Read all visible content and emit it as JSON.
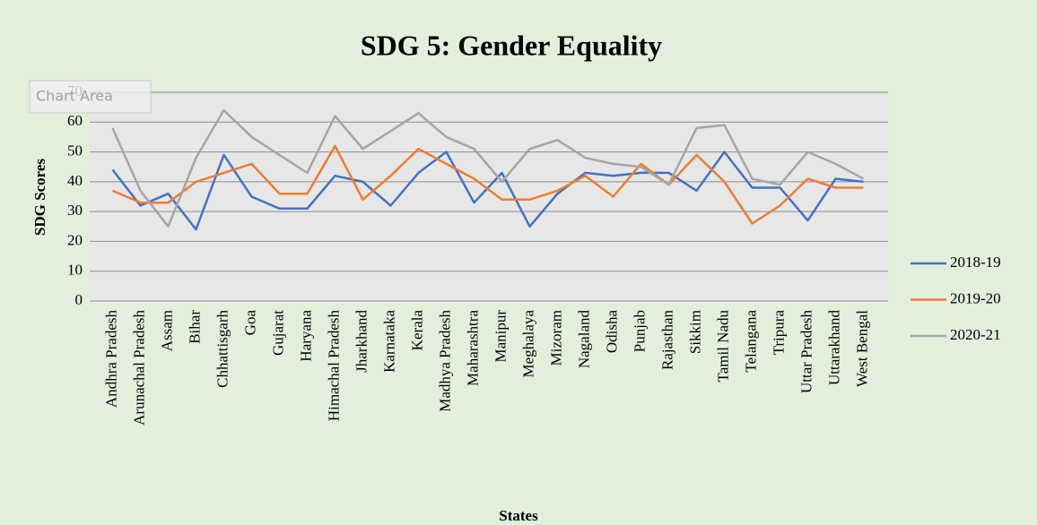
{
  "chart_data": {
    "type": "line",
    "title": "SDG 5: Gender Equality",
    "x_label": "States",
    "y_label": "SDG Scores",
    "categories": [
      "Andhra Pradesh",
      "Arunachal Pradesh",
      "Assam",
      "Bihar",
      "Chhattisgarh",
      "Goa",
      "Gujarat",
      "Haryana",
      "Himachal Pradesh",
      "Jharkhand",
      "Karnataka",
      "Kerala",
      "Madhya Pradesh",
      "Maharashtra",
      "Manipur",
      "Meghalaya",
      "Mizoram",
      "Nagaland",
      "Odisha",
      "Punjab",
      "Rajasthan",
      "Sikkim",
      "Tamil Nadu",
      "Telangana",
      "Tripura",
      "Uttar Pradesh",
      "Uttarakhand",
      "West Bengal"
    ],
    "series": [
      {
        "name": "2018-19",
        "color": "#4472c4",
        "values": [
          44,
          32,
          36,
          24,
          49,
          35,
          31,
          31,
          42,
          40,
          32,
          43,
          50,
          33,
          43,
          25,
          36,
          43,
          42,
          43,
          43,
          37,
          50,
          38,
          38,
          27,
          41,
          40
        ]
      },
      {
        "name": "2019-20",
        "color": "#ed7d31",
        "values": [
          37,
          33,
          33,
          40,
          43,
          46,
          36,
          36,
          52,
          34,
          42,
          51,
          46,
          41,
          34,
          34,
          37,
          42,
          35,
          46,
          39,
          49,
          40,
          26,
          32,
          41,
          38,
          38
        ]
      },
      {
        "name": "2020-21",
        "color": "#a5a5a5",
        "values": [
          58,
          37,
          25,
          48,
          64,
          55,
          49,
          43,
          62,
          51,
          57,
          63,
          55,
          51,
          40,
          51,
          54,
          48,
          46,
          45,
          39,
          58,
          59,
          41,
          39,
          50,
          46,
          41
        ]
      }
    ],
    "ylim": [
      0,
      70
    ],
    "yticks": [
      0,
      10,
      20,
      30,
      40,
      50,
      60,
      70
    ],
    "grid": true,
    "legend": "right"
  },
  "tooltip": "Chart Area"
}
